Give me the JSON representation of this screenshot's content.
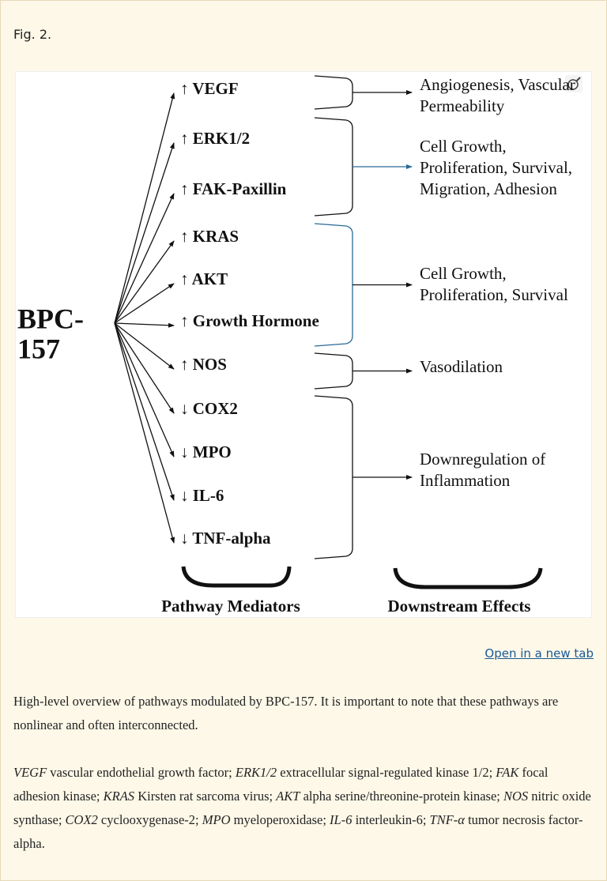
{
  "figure_label": "Fig. 2.",
  "diagram": {
    "source": [
      "BPC-",
      "157"
    ],
    "pathways": [
      {
        "mediators": [
          "↑ VEGF"
        ],
        "effect": [
          "Angiogenesis, Vascular",
          "Permeability"
        ]
      },
      {
        "mediators": [
          "↑ ERK1/2",
          "↑ FAK-Paxillin"
        ],
        "effect": [
          "Cell Growth,",
          "Proliferation, Survival,",
          "Migration, Adhesion"
        ]
      },
      {
        "mediators": [
          "↑ KRAS",
          "↑ AKT",
          "↑ Growth Hormone"
        ],
        "effect": [
          "Cell Growth,",
          "Proliferation, Survival"
        ]
      },
      {
        "mediators": [
          "↑ NOS"
        ],
        "effect": [
          "Vasodilation"
        ]
      },
      {
        "mediators": [
          "↓ COX2",
          "↓ MPO",
          "↓ IL-6",
          "↓ TNF-alpha"
        ],
        "effect": [
          "Downregulation of",
          "Inflammation"
        ]
      }
    ],
    "column_labels": [
      "Pathway Mediators",
      "Downstream Effects"
    ]
  },
  "link": "Open in a new tab",
  "caption": {
    "summary": "High-level overview of pathways modulated by BPC-157. It is important to note that these pathways are nonlinear and often interconnected.",
    "abbreviations": [
      {
        "abbr": "VEGF",
        "text": "vascular endothelial growth factor;"
      },
      {
        "abbr": "ERK1/2",
        "text": "extracellular signal-regulated kinase 1/2;"
      },
      {
        "abbr": "FAK",
        "text": "focal adhesion kinase;"
      },
      {
        "abbr": "KRAS",
        "text": "Kirsten rat sarcoma virus;"
      },
      {
        "abbr": "AKT",
        "text": "alpha serine/threonine-protein kinase;"
      },
      {
        "abbr": "NOS",
        "text": "nitric oxide synthase;"
      },
      {
        "abbr": "COX2",
        "text": "cyclooxygenase-2;"
      },
      {
        "abbr": "MPO",
        "text": "myeloperoxidase;"
      },
      {
        "abbr": "IL-6",
        "text": "interleukin-6;"
      },
      {
        "abbr": "TNF-α",
        "text": "tumor necrosis factor-alpha."
      }
    ]
  }
}
